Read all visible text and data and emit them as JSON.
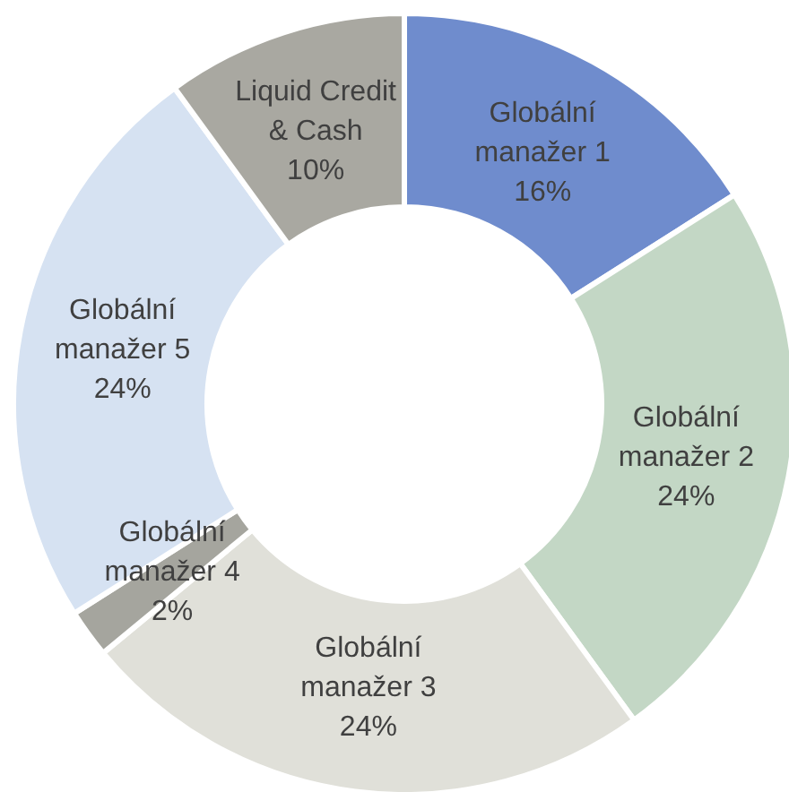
{
  "chart_data": {
    "type": "donut",
    "categories": [
      "Globální manažer 1",
      "Globální manažer 2",
      "Globální manažer 3",
      "Globální manažer 4",
      "Globální manažer 5",
      "Liquid Credit & Cash"
    ],
    "values": [
      16,
      24,
      24,
      2,
      24,
      10
    ],
    "value_labels": [
      "16%",
      "24%",
      "24%",
      "2%",
      "24%",
      "10%"
    ],
    "colors": [
      "#6f8ccd",
      "#c3d7c5",
      "#e0e0d9",
      "#a5a59e",
      "#d6e2f2",
      "#a9a8a1"
    ]
  }
}
